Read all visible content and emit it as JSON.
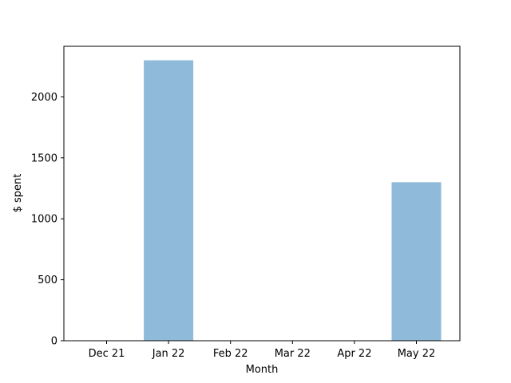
{
  "chart_data": {
    "type": "bar",
    "categories": [
      "Dec 21",
      "Jan 22",
      "Feb 22",
      "Mar 22",
      "Apr 22",
      "May 22"
    ],
    "values": [
      0,
      2300,
      0,
      0,
      0,
      1300
    ],
    "title": "",
    "xlabel": "Month",
    "ylabel": "$ spent",
    "ylim": [
      0,
      2415
    ],
    "yticks": [
      0,
      500,
      1000,
      1500,
      2000
    ],
    "bar_color": "#8fbad9",
    "grid": false,
    "legend": "none"
  }
}
